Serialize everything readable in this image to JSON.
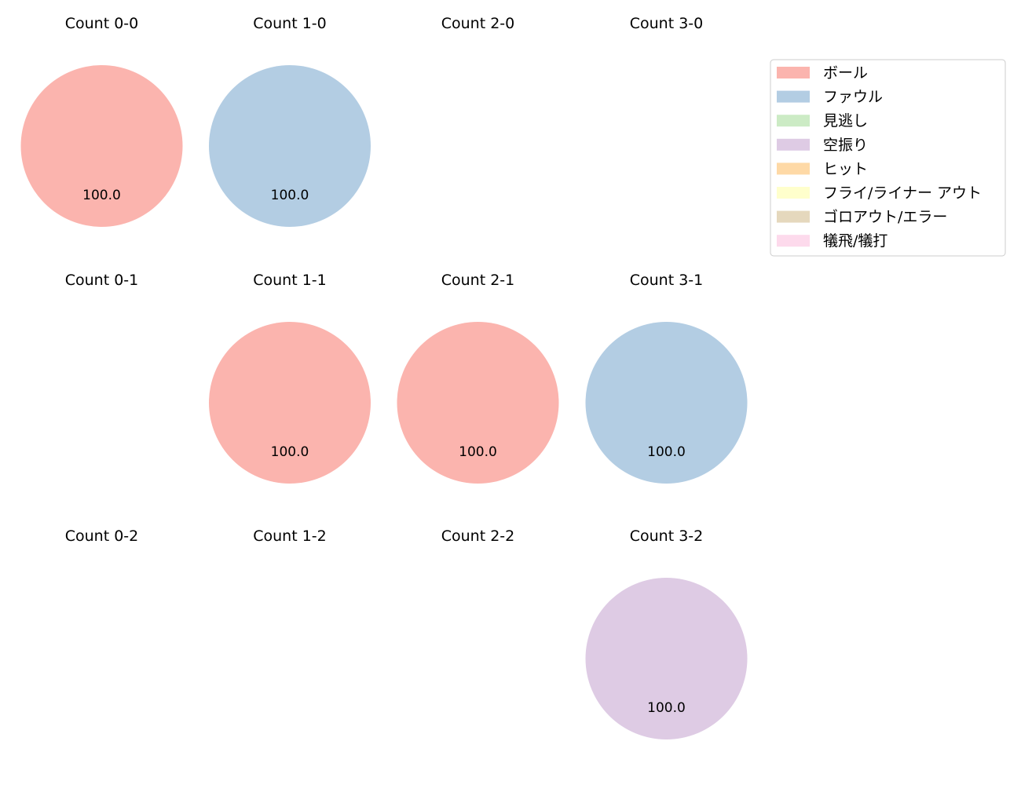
{
  "chart_data": {
    "type": "pie",
    "legend": {
      "placement": "top-right",
      "entries": [
        {
          "label": "ボール",
          "color": "#fbb4ae"
        },
        {
          "label": "ファウル",
          "color": "#b3cde3"
        },
        {
          "label": "見逃し",
          "color": "#ccebc5"
        },
        {
          "label": "空振り",
          "color": "#decbe4"
        },
        {
          "label": "ヒット",
          "color": "#fed9a6"
        },
        {
          "label": "フライ/ライナー アウト",
          "color": "#ffffcc"
        },
        {
          "label": "ゴロアウト/エラー",
          "color": "#e5d8bd"
        },
        {
          "label": "犠飛/犠打",
          "color": "#fddaec"
        }
      ]
    },
    "panels": [
      {
        "title": "Count 0-0",
        "slices": [
          {
            "category": "ボール",
            "value": 100.0,
            "label": "100.0"
          }
        ]
      },
      {
        "title": "Count 1-0",
        "slices": [
          {
            "category": "ファウル",
            "value": 100.0,
            "label": "100.0"
          }
        ]
      },
      {
        "title": "Count 2-0",
        "slices": []
      },
      {
        "title": "Count 3-0",
        "slices": []
      },
      {
        "title": "Count 0-1",
        "slices": []
      },
      {
        "title": "Count 1-1",
        "slices": [
          {
            "category": "ボール",
            "value": 100.0,
            "label": "100.0"
          }
        ]
      },
      {
        "title": "Count 2-1",
        "slices": [
          {
            "category": "ボール",
            "value": 100.0,
            "label": "100.0"
          }
        ]
      },
      {
        "title": "Count 3-1",
        "slices": [
          {
            "category": "ファウル",
            "value": 100.0,
            "label": "100.0"
          }
        ]
      },
      {
        "title": "Count 0-2",
        "slices": []
      },
      {
        "title": "Count 1-2",
        "slices": []
      },
      {
        "title": "Count 2-2",
        "slices": []
      },
      {
        "title": "Count 3-2",
        "slices": [
          {
            "category": "空振り",
            "value": 100.0,
            "label": "100.0"
          }
        ]
      }
    ]
  }
}
